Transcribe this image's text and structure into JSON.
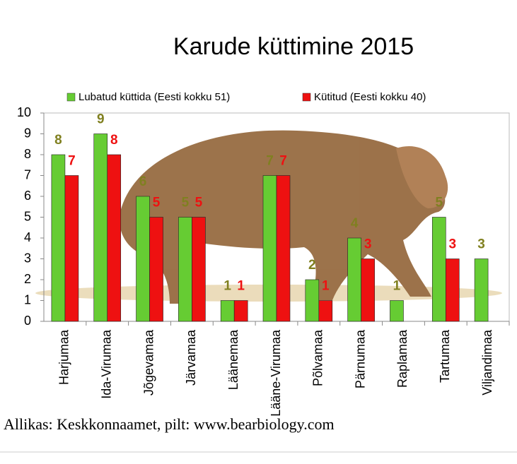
{
  "chart_data": {
    "type": "bar",
    "title": "Karude küttimine 2015",
    "categories": [
      "Harjumaa",
      "Ida-Virumaa",
      "Jõgevamaa",
      "Järvamaa",
      "Läänemaa",
      "Lääne-Virumaa",
      "Põlvamaa",
      "Pärnumaa",
      "Raplamaa",
      "Tartumaa",
      "Viljandimaa"
    ],
    "series": [
      {
        "name": "Lubatud küttida (Eesti kokku 51)",
        "color": "#66cc33",
        "label_color": "#808020",
        "values": [
          8,
          9,
          6,
          5,
          1,
          7,
          2,
          4,
          1,
          5,
          3
        ]
      },
      {
        "name": "Kütitud (Eesti kokku 40)",
        "color": "#ee1111",
        "label_color": "#ee1111",
        "values": [
          7,
          8,
          5,
          5,
          1,
          7,
          1,
          3,
          null,
          3,
          null
        ]
      }
    ],
    "ylim": [
      0,
      10
    ],
    "yticks": [
      0,
      1,
      2,
      3,
      4,
      5,
      6,
      7,
      8,
      9,
      10
    ],
    "grid": false,
    "source": "Allikas: Keskkonnaamet, pilt: www.bearbiology.com"
  }
}
